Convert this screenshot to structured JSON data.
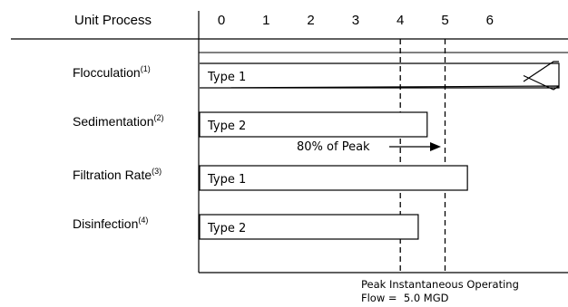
{
  "chart_data": {
    "type": "bar",
    "orientation": "horizontal",
    "header_label": "Unit Process",
    "ticks": [
      "0",
      "1",
      "2",
      "3",
      "4",
      "5",
      "6"
    ],
    "xlim": [
      0,
      6.5
    ],
    "categories": [
      {
        "name": "Flocculation",
        "note": "(1)",
        "value": 6.5,
        "bar_label": "Type 1",
        "exceeds_axis": true
      },
      {
        "name": "Sedimentation",
        "note": "(2)",
        "value": 4.6,
        "bar_label": "Type 2",
        "exceeds_axis": false
      },
      {
        "name": "Filtration Rate",
        "note": "(3)",
        "value": 5.5,
        "bar_label": "Type 1",
        "exceeds_axis": false
      },
      {
        "name": "Disinfection",
        "note": "(4)",
        "value": 4.4,
        "bar_label": "Type 2",
        "exceeds_axis": false
      }
    ],
    "reference_lines": [
      {
        "x": 4.0,
        "style": "dashed",
        "annotation": "80% of Peak"
      },
      {
        "x": 5.0,
        "style": "dashed",
        "caption_line1": "Peak Instantaneous Operating",
        "caption_line2": "Flow =  5.0 MGD"
      }
    ],
    "grid": false
  }
}
